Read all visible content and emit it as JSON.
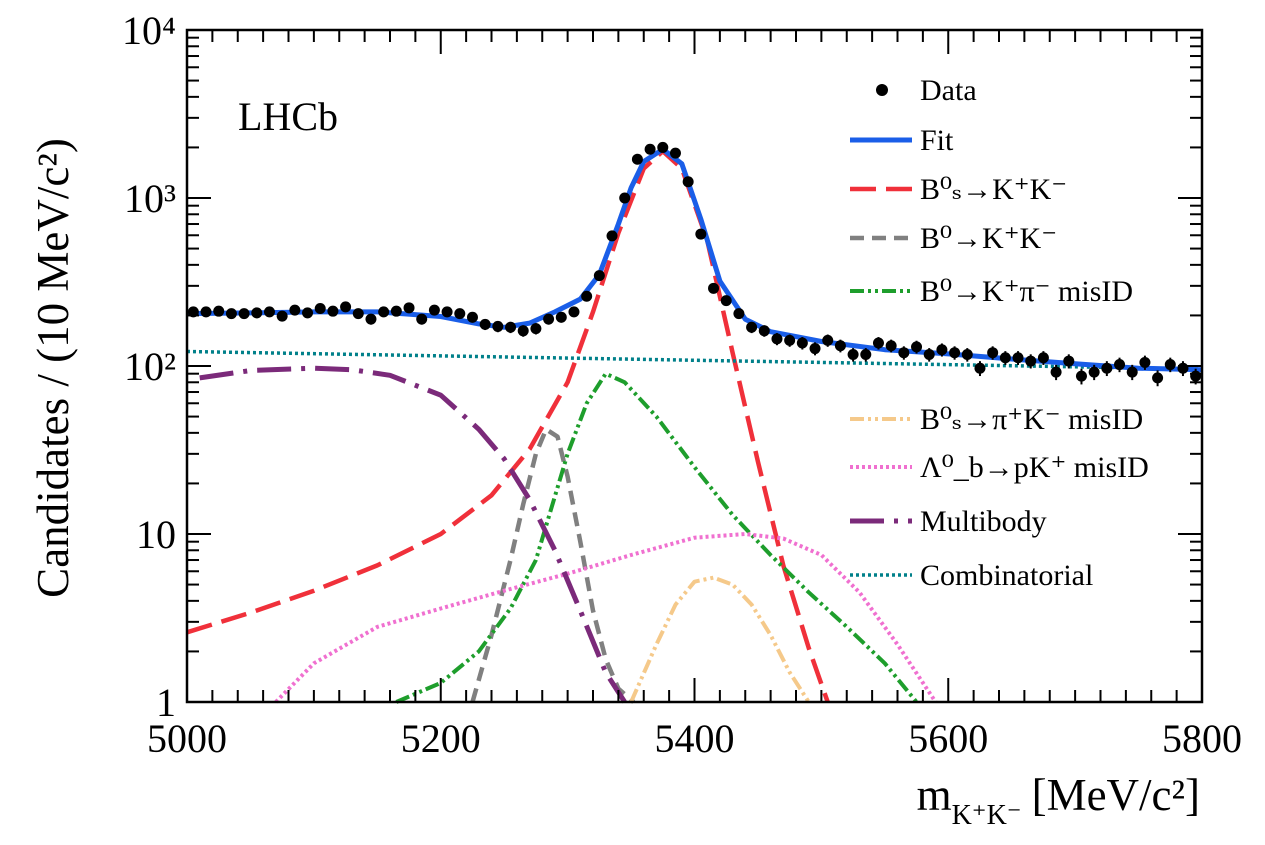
{
  "chart_data": {
    "type": "scatter",
    "title": "",
    "watermark": "LHCb",
    "xlabel": {
      "main": "m",
      "sub": "K⁺K⁻",
      "unit": "[MeV/c²]"
    },
    "ylabel": "Candidates / (10 MeV/c²)",
    "yscale": "log",
    "xlim": [
      5000,
      5800
    ],
    "ylim": [
      1,
      10000
    ],
    "x_ticks": [
      "5000",
      "5200",
      "5400",
      "5600",
      "5800"
    ],
    "y_ticks": [
      {
        "value": 1,
        "label": "1"
      },
      {
        "value": 10,
        "label": "10"
      },
      {
        "value": 100,
        "label": "10²"
      },
      {
        "value": 1000,
        "label": "10³"
      },
      {
        "value": 10000,
        "label": "10⁴"
      }
    ],
    "legend": {
      "placement": "top-right",
      "entries": [
        {
          "key": "data",
          "label": "Data",
          "style": "marker"
        },
        {
          "key": "fit",
          "label": "Fit",
          "style": "solid",
          "color": "#1a5ee8"
        },
        {
          "key": "bs_kk",
          "label": "B⁰ₛ→K⁺K⁻",
          "style": "longdash",
          "color": "#f0303a"
        },
        {
          "key": "b0_kk",
          "label": "B⁰→K⁺K⁻",
          "style": "dash",
          "color": "#808080"
        },
        {
          "key": "b0_kpi",
          "label": "B⁰→K⁺π⁻ misID",
          "style": "dashdotdot",
          "color": "#1e9e2c"
        },
        {
          "key": "bs_pik",
          "label": "B⁰ₛ→π⁺K⁻ misID",
          "style": "dashdotdot",
          "color": "#f5c98a"
        },
        {
          "key": "lb_pk",
          "label": "Λ⁰_b→pK⁺ misID",
          "style": "dotted",
          "color": "#f070d0"
        },
        {
          "key": "multibody",
          "label": "Multibody",
          "style": "longdashdot",
          "color": "#7b2a7a"
        },
        {
          "key": "combinatorial",
          "label": "Combinatorial",
          "style": "dotted",
          "color": "#00808a"
        }
      ]
    },
    "data": {
      "x": [
        5005,
        5015,
        5025,
        5035,
        5045,
        5055,
        5065,
        5075,
        5085,
        5095,
        5105,
        5115,
        5125,
        5135,
        5145,
        5155,
        5165,
        5175,
        5185,
        5195,
        5205,
        5215,
        5225,
        5235,
        5245,
        5255,
        5265,
        5275,
        5285,
        5295,
        5305,
        5315,
        5325,
        5335,
        5345,
        5355,
        5365,
        5375,
        5385,
        5395,
        5405,
        5415,
        5425,
        5435,
        5445,
        5455,
        5465,
        5475,
        5485,
        5495,
        5505,
        5515,
        5525,
        5535,
        5545,
        5555,
        5565,
        5575,
        5585,
        5595,
        5605,
        5615,
        5625,
        5635,
        5645,
        5655,
        5665,
        5675,
        5685,
        5695,
        5705,
        5715,
        5725,
        5735,
        5745,
        5755,
        5765,
        5775,
        5785,
        5795
      ],
      "y": [
        210,
        210,
        212,
        205,
        205,
        207,
        210,
        198,
        215,
        207,
        220,
        212,
        225,
        205,
        190,
        210,
        212,
        222,
        190,
        215,
        210,
        205,
        195,
        177,
        172,
        170,
        162,
        167,
        190,
        195,
        210,
        260,
        345,
        595,
        1000,
        1700,
        1950,
        2000,
        1850,
        1250,
        610,
        290,
        245,
        205,
        170,
        162,
        145,
        142,
        137,
        127,
        142,
        132,
        117,
        117,
        137,
        132,
        120,
        130,
        117,
        125,
        120,
        117,
        97,
        120,
        112,
        112,
        107,
        112,
        92,
        107,
        87,
        92,
        97,
        102,
        92,
        105,
        85,
        102,
        97,
        87
      ]
    },
    "series": [
      {
        "key": "fit",
        "name": "Fit",
        "x": [
          5000,
          5050,
          5100,
          5150,
          5200,
          5230,
          5250,
          5270,
          5290,
          5310,
          5325,
          5340,
          5350,
          5360,
          5375,
          5390,
          5405,
          5420,
          5440,
          5460,
          5500,
          5550,
          5600,
          5650,
          5700,
          5750,
          5800
        ],
        "y": [
          205,
          207,
          210,
          210,
          197,
          178,
          170,
          180,
          210,
          250,
          350,
          700,
          1150,
          1650,
          1950,
          1600,
          750,
          320,
          190,
          160,
          140,
          125,
          118,
          110,
          103,
          97,
          95
        ]
      },
      {
        "key": "bs_kk",
        "name": "B⁰ₛ→K⁺K⁻",
        "x": [
          5000,
          5050,
          5100,
          5150,
          5200,
          5240,
          5270,
          5300,
          5320,
          5340,
          5360,
          5375,
          5390,
          5410,
          5430,
          5450,
          5470,
          5490,
          5505
        ],
        "y": [
          2.6,
          3.4,
          4.6,
          6.5,
          10,
          17,
          32,
          80,
          210,
          620,
          1500,
          1900,
          1500,
          560,
          120,
          27,
          6.5,
          2.1,
          1
        ]
      },
      {
        "key": "b0_kk",
        "name": "B⁰→K⁺K⁻",
        "x": [
          5225,
          5240,
          5255,
          5265,
          5275,
          5283,
          5292,
          5300,
          5310,
          5320,
          5330,
          5340,
          5352
        ],
        "y": [
          1,
          2.5,
          7,
          15,
          30,
          42,
          38,
          22,
          9,
          3.5,
          1.8,
          1.2,
          1
        ]
      },
      {
        "key": "b0_kpi",
        "name": "B⁰→K⁺π⁻ misID",
        "x": [
          5165,
          5200,
          5230,
          5255,
          5275,
          5300,
          5315,
          5330,
          5345,
          5370,
          5400,
          5430,
          5460,
          5490,
          5520,
          5550,
          5575
        ],
        "y": [
          1,
          1.3,
          2,
          3.6,
          7,
          30,
          60,
          90,
          80,
          50,
          25,
          13,
          7.5,
          4.5,
          2.8,
          1.7,
          1
        ]
      },
      {
        "key": "bs_pik",
        "name": "B⁰ₛ→π⁺K⁻ misID",
        "x": [
          5350,
          5370,
          5385,
          5400,
          5415,
          5430,
          5445,
          5460,
          5475,
          5490
        ],
        "y": [
          1,
          2.2,
          3.8,
          5.2,
          5.5,
          5,
          3.8,
          2.5,
          1.5,
          1
        ]
      },
      {
        "key": "lb_pk",
        "name": "Λ⁰_b→pK⁺ misID",
        "x": [
          5070,
          5100,
          5150,
          5200,
          5250,
          5300,
          5350,
          5400,
          5440,
          5470,
          5500,
          5530,
          5560,
          5590
        ],
        "y": [
          1,
          1.7,
          2.8,
          3.6,
          4.6,
          5.8,
          7.5,
          9.5,
          10,
          9.4,
          7.5,
          4.5,
          2.2,
          1
        ]
      },
      {
        "key": "multibody",
        "name": "Multibody",
        "x": [
          5010,
          5050,
          5100,
          5130,
          5160,
          5200,
          5230,
          5250,
          5270,
          5290,
          5310,
          5330,
          5345
        ],
        "y": [
          85,
          94,
          97,
          95,
          88,
          67,
          42,
          28,
          16,
          8,
          3.5,
          1.5,
          1
        ]
      },
      {
        "key": "combinatorial",
        "name": "Combinatorial",
        "x": [
          5000,
          5800
        ],
        "y": [
          122,
          96
        ]
      }
    ]
  }
}
